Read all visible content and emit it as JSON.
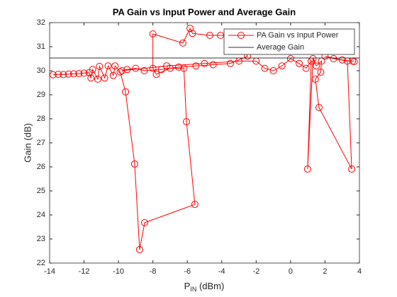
{
  "chart_data": {
    "type": "line",
    "title": "PA Gain vs Input Power and Average Gain",
    "xlabel_main": "P",
    "xlabel_sub": "IN",
    "xlabel_unit": " (dBm)",
    "ylabel": "Gain (dB)",
    "xlim": [
      -14,
      4
    ],
    "ylim": [
      22,
      32
    ],
    "xticks": [
      -14,
      -12,
      -10,
      -8,
      -6,
      -4,
      -2,
      0,
      2,
      4
    ],
    "yticks": [
      22,
      23,
      24,
      25,
      26,
      27,
      28,
      29,
      30,
      31,
      32
    ],
    "grid": false,
    "legend": "top-right",
    "series": [
      {
        "name": "PA Gain vs Input Power",
        "color": "#ff0000",
        "marker": "circle",
        "x": [
          -13.8,
          -13.5,
          -13.2,
          -12.9,
          -12.6,
          -12.3,
          -12.0,
          -11.7,
          -11.6,
          -11.5,
          -11.2,
          -11.1,
          -10.8,
          -10.6,
          -10.3,
          -10.2,
          -9.9,
          -9.59,
          -9.06,
          -8.77,
          -8.48,
          -5.56,
          -6.05,
          -6.2,
          -7.0,
          -7.8,
          -8.0,
          -8.0,
          -6.26,
          -5.84,
          -5.7,
          -4.69,
          -4.07,
          -3.2,
          -2.5,
          -3.5,
          -4.5,
          -5.5,
          -6.5,
          -7.5,
          -8.5,
          -9.0,
          -9.5,
          -9.8,
          -7.2,
          -5.0,
          -3.0,
          -2.0,
          -1.5,
          -1.0,
          -0.5,
          0.0,
          0.5,
          0.9,
          1.2,
          0.99,
          1.3,
          1.5,
          1.8,
          1.75,
          1.44,
          1.65,
          3.55,
          3.3,
          2.5,
          2.0,
          3.0,
          3.6,
          3.7
        ],
        "values": [
          29.83,
          29.85,
          29.84,
          29.86,
          29.87,
          29.88,
          29.9,
          29.92,
          29.7,
          30.05,
          29.65,
          30.18,
          29.7,
          30.2,
          29.8,
          30.2,
          29.95,
          29.12,
          26.12,
          22.56,
          23.68,
          24.44,
          27.88,
          30.1,
          30.1,
          29.85,
          30.1,
          31.53,
          31.15,
          31.76,
          31.55,
          31.47,
          31.47,
          31.45,
          30.6,
          30.3,
          30.25,
          30.2,
          30.15,
          30.05,
          30.0,
          30.1,
          30.05,
          30.0,
          30.2,
          30.3,
          30.4,
          30.4,
          30.1,
          30.0,
          30.2,
          30.5,
          30.3,
          30.1,
          30.4,
          25.91,
          30.5,
          30.2,
          30.4,
          29.94,
          29.65,
          28.47,
          25.91,
          30.4,
          30.5,
          30.6,
          30.45,
          30.4,
          30.38
        ]
      },
      {
        "name": "Average Gain",
        "color": "#333333",
        "marker": "none",
        "x": [
          -14,
          4
        ],
        "values": [
          30.53,
          30.53
        ]
      }
    ]
  }
}
